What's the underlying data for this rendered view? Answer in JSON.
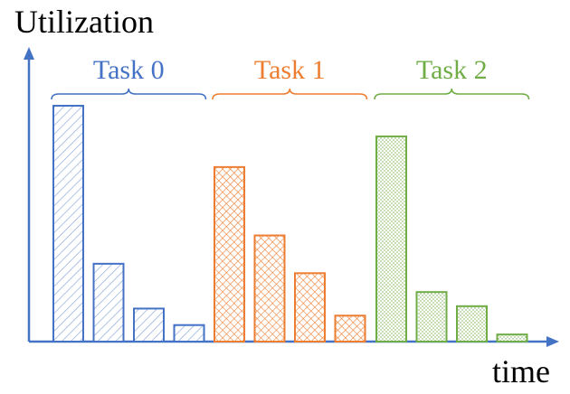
{
  "chart_data": {
    "type": "bar",
    "ylabel": "Utilization",
    "xlabel": "time",
    "groups": [
      {
        "name": "Task 0",
        "color": "#4472c4",
        "pattern": "diagonal-hatch",
        "values": [
          100,
          33,
          14,
          7
        ]
      },
      {
        "name": "Task 1",
        "color": "#ed7d31",
        "pattern": "crosshatch",
        "values": [
          74,
          45,
          29,
          11
        ]
      },
      {
        "name": "Task 2",
        "color": "#70ad47",
        "pattern": "dots",
        "values": [
          87,
          21,
          15,
          3
        ]
      }
    ],
    "ylim": [
      0,
      100
    ],
    "grid": false
  },
  "colors": {
    "axis": "#4472c4"
  }
}
